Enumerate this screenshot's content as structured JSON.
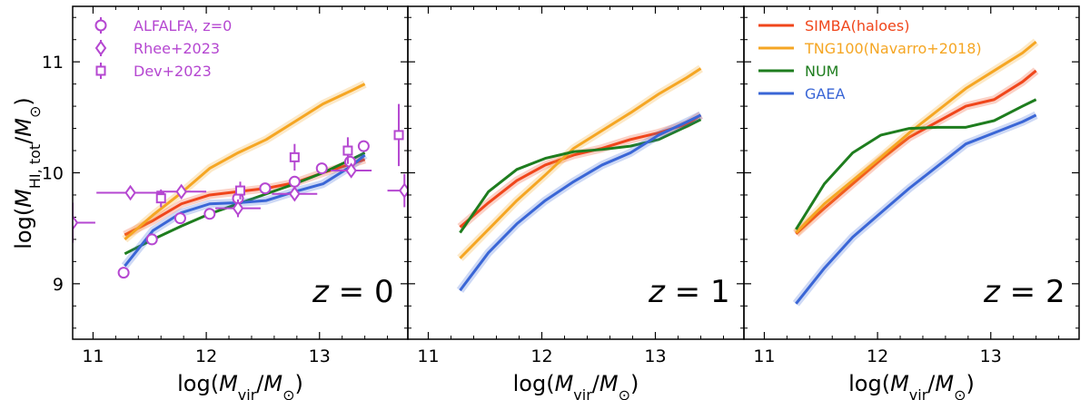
{
  "chart_data": {
    "type": "line",
    "layout": "three panels sharing y axis",
    "xlim": [
      10.82,
      11.84
    ],
    "xlim_note": "",
    "panels": [
      {
        "label": "z = 0",
        "xlim": [
          10.82,
          13.78
        ],
        "ylim": [
          8.5,
          11.5
        ],
        "xticks": [
          11,
          12,
          13
        ],
        "yticks": [
          9,
          10,
          11
        ],
        "xlabel": "log(M_vir/M_⊙)",
        "series": [
          {
            "name": "SIMBA(haloes)",
            "color": "#f0461b",
            "x": [
              11.28,
              11.53,
              11.78,
              12.03,
              12.28,
              12.53,
              12.78,
              13.03,
              13.28,
              13.4
            ],
            "y": [
              9.44,
              9.57,
              9.72,
              9.8,
              9.83,
              9.86,
              9.91,
              10.0,
              10.08,
              10.12
            ]
          },
          {
            "name": "TNG100(Navarro+2018)",
            "color": "#f5a623",
            "x": [
              11.28,
              11.53,
              11.78,
              12.03,
              12.28,
              12.53,
              12.78,
              13.03,
              13.28,
              13.4
            ],
            "y": [
              9.4,
              9.62,
              9.82,
              10.04,
              10.18,
              10.3,
              10.46,
              10.62,
              10.74,
              10.8
            ]
          },
          {
            "name": "NUM",
            "color": "#1e7d1e",
            "x": [
              11.28,
              11.53,
              11.78,
              12.03,
              12.28,
              12.53,
              12.78,
              13.03,
              13.28,
              13.4
            ],
            "y": [
              9.27,
              9.4,
              9.52,
              9.63,
              9.72,
              9.81,
              9.9,
              10.0,
              10.12,
              10.18
            ]
          },
          {
            "name": "GAEA",
            "color": "#3a66d6",
            "x": [
              11.28,
              11.53,
              11.78,
              12.03,
              12.28,
              12.53,
              12.78,
              13.03,
              13.28,
              13.4
            ],
            "y": [
              9.16,
              9.48,
              9.64,
              9.72,
              9.73,
              9.75,
              9.83,
              9.9,
              10.06,
              10.16
            ]
          }
        ],
        "observations": [
          {
            "name": "ALFALFA, z=0",
            "marker": "circle",
            "color": "#b547d1",
            "x": [
              11.27,
              11.52,
              11.77,
              12.03,
              12.28,
              12.52,
              12.78,
              13.02,
              13.27,
              13.39
            ],
            "y": [
              9.1,
              9.4,
              9.59,
              9.63,
              9.77,
              9.86,
              9.92,
              10.04,
              10.1,
              10.24
            ],
            "yerr": [
              0.03,
              0.03,
              0.03,
              0.03,
              0.03,
              0.03,
              0.03,
              0.03,
              0.03,
              0.03
            ]
          },
          {
            "name": "Rhee+2023",
            "marker": "diamond",
            "color": "#b547d1",
            "x": [
              10.82,
              11.33,
              11.78,
              12.28,
              12.78,
              13.28,
              13.75
            ],
            "y": [
              9.55,
              9.82,
              9.83,
              9.68,
              9.81,
              10.02,
              9.84
            ],
            "xerr": [
              0.2,
              0.3,
              0.22,
              0.2,
              0.2,
              0.18,
              0.15
            ],
            "yerr": [
              0.18,
              0.05,
              0.06,
              0.08,
              0.06,
              0.06,
              0.15
            ]
          },
          {
            "name": "Dev+2023",
            "marker": "square",
            "color": "#b547d1",
            "x": [
              11.6,
              12.3,
              12.78,
              13.25,
              13.7
            ],
            "y": [
              9.77,
              9.84,
              10.14,
              10.2,
              10.34
            ],
            "yerr": [
              0.08,
              0.08,
              0.12,
              0.12,
              0.28
            ]
          }
        ]
      },
      {
        "label": "z = 1",
        "xlim": [
          10.82,
          13.78
        ],
        "ylim": [
          8.5,
          11.5
        ],
        "xticks": [
          11,
          12,
          13
        ],
        "yticks": [
          9,
          10,
          11
        ],
        "xlabel": "log(M_vir/M_⊙)",
        "series": [
          {
            "name": "SIMBA(haloes)",
            "color": "#f0461b",
            "x": [
              11.28,
              11.53,
              11.78,
              12.03,
              12.28,
              12.53,
              12.78,
              13.03,
              13.28,
              13.4
            ],
            "y": [
              9.51,
              9.73,
              9.93,
              10.07,
              10.16,
              10.22,
              10.3,
              10.36,
              10.44,
              10.52
            ]
          },
          {
            "name": "TNG100(Navarro+2018)",
            "color": "#f5a623",
            "x": [
              11.28,
              11.53,
              11.78,
              12.03,
              12.28,
              12.53,
              12.78,
              13.03,
              13.28,
              13.4
            ],
            "y": [
              9.23,
              9.49,
              9.75,
              9.98,
              10.22,
              10.38,
              10.54,
              10.71,
              10.86,
              10.94
            ]
          },
          {
            "name": "NUM",
            "color": "#1e7d1e",
            "x": [
              11.28,
              11.53,
              11.78,
              12.03,
              12.28,
              12.53,
              12.78,
              13.03,
              13.28,
              13.4
            ],
            "y": [
              9.46,
              9.83,
              10.03,
              10.13,
              10.19,
              10.21,
              10.24,
              10.3,
              10.42,
              10.48
            ]
          },
          {
            "name": "GAEA",
            "color": "#3a66d6",
            "x": [
              11.28,
              11.53,
              11.78,
              12.03,
              12.28,
              12.53,
              12.78,
              13.03,
              13.28,
              13.4
            ],
            "y": [
              8.94,
              9.28,
              9.54,
              9.75,
              9.92,
              10.07,
              10.18,
              10.34,
              10.46,
              10.52
            ]
          }
        ]
      },
      {
        "label": "z = 2",
        "xlim": [
          10.82,
          13.78
        ],
        "ylim": [
          8.5,
          11.5
        ],
        "xticks": [
          11,
          12,
          13
        ],
        "yticks": [
          9,
          10,
          11
        ],
        "xlabel": "log(M_vir/M_⊙)",
        "series": [
          {
            "name": "SIMBA(haloes)",
            "color": "#f0461b",
            "x": [
              11.28,
              11.53,
              11.78,
              12.03,
              12.28,
              12.53,
              12.78,
              13.03,
              13.28,
              13.4
            ],
            "y": [
              9.45,
              9.68,
              9.9,
              10.12,
              10.32,
              10.46,
              10.6,
              10.66,
              10.82,
              10.92
            ]
          },
          {
            "name": "TNG100(Navarro+2018)",
            "color": "#f5a623",
            "x": [
              11.28,
              11.53,
              11.78,
              12.03,
              12.28,
              12.53,
              12.78,
              13.03,
              13.28,
              13.4
            ],
            "y": [
              9.46,
              9.72,
              9.93,
              10.14,
              10.36,
              10.56,
              10.76,
              10.92,
              11.08,
              11.18
            ]
          },
          {
            "name": "NUM",
            "color": "#1e7d1e",
            "x": [
              11.28,
              11.53,
              11.78,
              12.03,
              12.28,
              12.53,
              12.78,
              13.03,
              13.28,
              13.4
            ],
            "y": [
              9.49,
              9.9,
              10.18,
              10.34,
              10.4,
              10.41,
              10.41,
              10.47,
              10.6,
              10.66
            ]
          },
          {
            "name": "GAEA",
            "color": "#3a66d6",
            "x": [
              11.28,
              11.53,
              11.78,
              12.03,
              12.28,
              12.53,
              12.78,
              13.03,
              13.28,
              13.4
            ],
            "y": [
              8.82,
              9.14,
              9.42,
              9.64,
              9.86,
              10.06,
              10.26,
              10.36,
              10.46,
              10.52
            ]
          }
        ]
      }
    ],
    "ylabel": "log(M_HI,tot/M_⊙)",
    "legend_obs": {
      "placement": "top-left of panel 1",
      "entries": [
        "ALFALFA, z=0",
        "Rhee+2023",
        "Dev+2023"
      ]
    },
    "legend_models": {
      "placement": "top-left of panel 3",
      "entries": [
        "SIMBA(haloes)",
        "TNG100(Navarro+2018)",
        "NUM",
        "GAEA"
      ]
    },
    "grid": false
  }
}
